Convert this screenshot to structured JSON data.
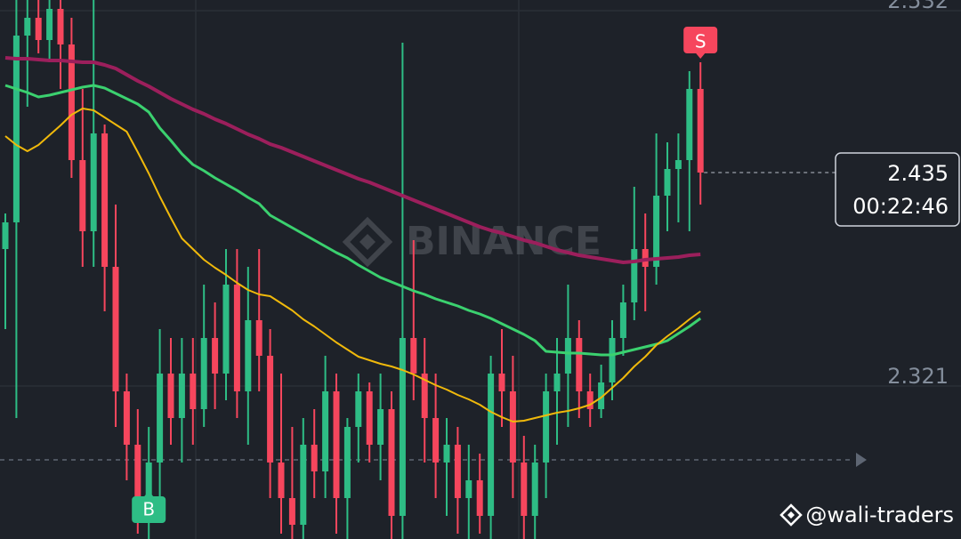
{
  "chart_data": {
    "type": "candlestick",
    "up_color": "#2ebd85",
    "down_color": "#f6465d",
    "ohlc": [
      [
        2.392,
        2.412,
        2.347,
        2.407
      ],
      [
        2.407,
        2.532,
        2.297,
        2.512
      ],
      [
        2.512,
        2.532,
        2.472,
        2.522
      ],
      [
        2.522,
        2.532,
        2.502,
        2.5095
      ],
      [
        2.5095,
        2.532,
        2.497,
        2.527
      ],
      [
        2.527,
        2.532,
        2.482,
        2.507
      ],
      [
        2.507,
        2.522,
        2.432,
        2.442
      ],
      [
        2.442,
        2.482,
        2.382,
        2.402
      ],
      [
        2.402,
        2.532,
        2.382,
        2.457
      ],
      [
        2.457,
        2.462,
        2.357,
        2.382
      ],
      [
        2.382,
        2.417,
        2.292,
        2.312
      ],
      [
        2.312,
        2.322,
        2.262,
        2.282
      ],
      [
        2.282,
        2.302,
        2.232,
        2.242
      ],
      [
        2.242,
        2.292,
        2.229,
        2.272
      ],
      [
        2.272,
        2.347,
        2.242,
        2.322
      ],
      [
        2.322,
        2.342,
        2.282,
        2.297
      ],
      [
        2.297,
        2.342,
        2.272,
        2.322
      ],
      [
        2.322,
        2.342,
        2.282,
        2.302
      ],
      [
        2.302,
        2.372,
        2.292,
        2.342
      ],
      [
        2.342,
        2.362,
        2.302,
        2.322
      ],
      [
        2.322,
        2.392,
        2.307,
        2.372
      ],
      [
        2.372,
        2.392,
        2.297,
        2.312
      ],
      [
        2.312,
        2.382,
        2.282,
        2.352
      ],
      [
        2.352,
        2.392,
        2.312,
        2.332
      ],
      [
        2.332,
        2.347,
        2.252,
        2.272
      ],
      [
        2.272,
        2.322,
        2.232,
        2.252
      ],
      [
        2.252,
        2.292,
        2.229,
        2.237
      ],
      [
        2.237,
        2.297,
        2.229,
        2.282
      ],
      [
        2.282,
        2.302,
        2.252,
        2.267
      ],
      [
        2.267,
        2.332,
        2.252,
        2.312
      ],
      [
        2.312,
        2.322,
        2.232,
        2.252
      ],
      [
        2.252,
        2.297,
        2.229,
        2.292
      ],
      [
        2.292,
        2.322,
        2.272,
        2.312
      ],
      [
        2.312,
        2.317,
        2.272,
        2.282
      ],
      [
        2.282,
        2.322,
        2.262,
        2.302
      ],
      [
        2.302,
        2.312,
        2.229,
        2.242
      ],
      [
        2.242,
        2.508,
        2.229,
        2.342
      ],
      [
        2.342,
        2.397,
        2.307,
        2.322
      ],
      [
        2.322,
        2.342,
        2.272,
        2.297
      ],
      [
        2.297,
        2.322,
        2.252,
        2.272
      ],
      [
        2.272,
        2.297,
        2.242,
        2.282
      ],
      [
        2.282,
        2.292,
        2.232,
        2.252
      ],
      [
        2.252,
        2.282,
        2.229,
        2.262
      ],
      [
        2.262,
        2.277,
        2.232,
        2.242
      ],
      [
        2.242,
        2.332,
        2.229,
        2.322
      ],
      [
        2.322,
        2.347,
        2.292,
        2.312
      ],
      [
        2.312,
        2.332,
        2.252,
        2.272
      ],
      [
        2.272,
        2.287,
        2.229,
        2.242
      ],
      [
        2.242,
        2.282,
        2.229,
        2.272
      ],
      [
        2.272,
        2.322,
        2.252,
        2.312
      ],
      [
        2.312,
        2.342,
        2.282,
        2.322
      ],
      [
        2.322,
        2.372,
        2.292,
        2.342
      ],
      [
        2.342,
        2.352,
        2.297,
        2.312
      ],
      [
        2.312,
        2.322,
        2.292,
        2.302
      ],
      [
        2.302,
        2.327,
        2.297,
        2.317
      ],
      [
        2.317,
        2.352,
        2.307,
        2.342
      ],
      [
        2.342,
        2.372,
        2.332,
        2.362
      ],
      [
        2.362,
        2.427,
        2.352,
        2.392
      ],
      [
        2.392,
        2.412,
        2.357,
        2.382
      ],
      [
        2.382,
        2.457,
        2.372,
        2.422
      ],
      [
        2.422,
        2.452,
        2.402,
        2.437
      ],
      [
        2.437,
        2.457,
        2.407,
        2.442
      ],
      [
        2.442,
        2.492,
        2.402,
        2.482
      ],
      [
        2.482,
        2.497,
        2.417,
        2.435
      ]
    ],
    "series": [
      {
        "color": "#9c1f5c",
        "width": 4,
        "values": [
          2.4995,
          2.499,
          2.499,
          2.4985,
          2.498,
          2.498,
          2.4975,
          2.497,
          2.497,
          2.4955,
          2.4935,
          2.49,
          2.4865,
          2.4835,
          2.48,
          2.4765,
          2.4735,
          2.4705,
          2.468,
          2.465,
          2.4625,
          2.4595,
          2.4565,
          2.454,
          2.451,
          2.449,
          2.4465,
          2.444,
          2.4415,
          2.439,
          2.4365,
          2.434,
          2.4315,
          2.4295,
          2.427,
          2.4245,
          2.422,
          2.4195,
          2.417,
          2.4145,
          2.412,
          2.4095,
          2.407,
          2.4045,
          2.4025,
          2.401,
          2.399,
          2.397,
          2.3955,
          2.3935,
          2.3915,
          2.39,
          2.3885,
          2.3875,
          2.3865,
          2.3855,
          2.3845,
          2.385,
          2.386,
          2.3865,
          2.387,
          2.3875,
          2.3885,
          2.389
        ]
      },
      {
        "color": "#3bd16f",
        "width": 3,
        "values": [
          2.484,
          2.482,
          2.48,
          2.4775,
          2.4785,
          2.48,
          2.4815,
          2.483,
          2.484,
          2.4825,
          2.4795,
          2.4765,
          2.4735,
          2.469,
          2.46,
          2.453,
          2.4455,
          2.4395,
          2.436,
          2.432,
          2.4285,
          2.425,
          2.421,
          2.4175,
          2.411,
          2.4075,
          2.404,
          2.4005,
          2.397,
          2.3935,
          2.39,
          2.387,
          2.383,
          2.3795,
          2.376,
          2.3735,
          2.371,
          2.3685,
          2.3665,
          2.364,
          2.362,
          2.36,
          2.3575,
          2.3555,
          2.353,
          2.35,
          2.347,
          2.344,
          2.3405,
          2.3345,
          2.334,
          2.3335,
          2.3335,
          2.333,
          2.3325,
          2.3325,
          2.334,
          2.3355,
          2.337,
          2.3385,
          2.3405,
          2.3445,
          2.3485,
          2.353
        ]
      },
      {
        "color": "#f0b90b",
        "width": 2,
        "values": [
          2.4555,
          2.4505,
          2.447,
          2.4505,
          2.456,
          2.4615,
          2.4675,
          2.471,
          2.47,
          2.466,
          2.462,
          2.458,
          2.4465,
          2.4345,
          2.4215,
          2.4095,
          2.398,
          2.392,
          2.386,
          2.3815,
          2.3775,
          2.373,
          2.369,
          2.3665,
          2.3655,
          2.3615,
          2.3575,
          2.3525,
          2.3485,
          2.344,
          2.3395,
          2.3355,
          2.3315,
          2.3295,
          2.3275,
          2.326,
          2.324,
          2.3215,
          2.3185,
          2.3155,
          2.313,
          2.31,
          2.3075,
          2.3045,
          2.3005,
          2.2975,
          2.295,
          2.2955,
          2.297,
          2.2985,
          2.3,
          2.301,
          2.3025,
          2.3045,
          2.3085,
          2.314,
          2.3195,
          2.326,
          2.3315,
          2.338,
          2.343,
          2.3475,
          2.3525,
          2.357
        ]
      }
    ],
    "ylim": [
      2.229,
      2.532
    ],
    "yticks": [
      2.532,
      2.321
    ],
    "grid": true,
    "last_price": 2.435,
    "countdown": "00:22:46",
    "reference_line": 2.2735,
    "markers": [
      {
        "label": "S",
        "index": 63,
        "color": "#f6465d",
        "side": "above"
      },
      {
        "label": "B",
        "index": 13,
        "color": "#2ebd85",
        "side": "below"
      }
    ],
    "watermark": "BINANCE",
    "credit": "@wali-traders"
  }
}
